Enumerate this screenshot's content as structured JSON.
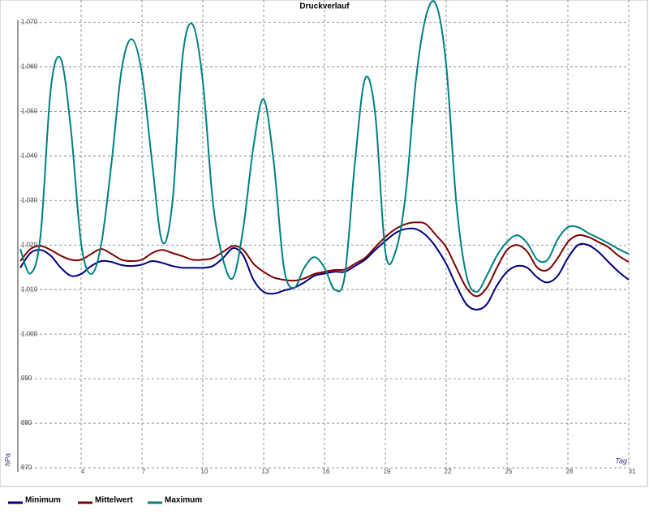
{
  "chart_data": {
    "type": "line",
    "title": "Druckverlauf",
    "y_label": "hPa",
    "x_label": "Tag",
    "x": [
      1,
      1.5,
      2,
      2.5,
      3,
      3.5,
      4,
      4.5,
      5,
      5.5,
      6,
      6.5,
      7,
      7.5,
      8,
      8.5,
      9,
      9.5,
      10,
      10.5,
      11,
      11.5,
      12,
      12.5,
      13,
      13.5,
      14,
      14.5,
      15,
      15.5,
      16,
      16.5,
      17,
      17.5,
      18,
      18.5,
      19,
      19.5,
      20,
      20.5,
      21,
      21.5,
      22,
      22.5,
      23,
      23.5,
      24,
      24.5,
      25,
      25.5,
      26,
      26.5,
      27,
      27.5,
      28,
      28.5,
      29,
      29.5,
      30,
      30.5,
      31
    ],
    "series": [
      {
        "name": "Minimum",
        "color": "#000080",
        "values": [
          1014.9,
          1018.2,
          1018.9,
          1017.6,
          1014.9,
          1013.1,
          1013.5,
          1015.3,
          1016.4,
          1016.2,
          1015.5,
          1015.3,
          1015.6,
          1016.4,
          1016,
          1015.3,
          1014.9,
          1014.9,
          1014.9,
          1015.3,
          1017.1,
          1019.3,
          1017.6,
          1012.2,
          1009.5,
          1009.1,
          1009.8,
          1010.4,
          1011.6,
          1013.1,
          1013.6,
          1014,
          1014,
          1015.3,
          1016.7,
          1018.9,
          1020.9,
          1022.7,
          1023.6,
          1023.6,
          1022.2,
          1019.5,
          1015.8,
          1010.9,
          1006.7,
          1005.5,
          1006.7,
          1010.9,
          1014,
          1015.3,
          1014.9,
          1012.7,
          1011.6,
          1013.1,
          1017.1,
          1020,
          1020,
          1018.5,
          1016.2,
          1014,
          1012.2
        ]
      },
      {
        "name": "Mittelwert",
        "color": "#800000",
        "values": [
          1016.4,
          1019.1,
          1019.8,
          1018.9,
          1017.6,
          1016.7,
          1016.7,
          1018,
          1019.1,
          1018,
          1016.7,
          1016.4,
          1016.7,
          1018.2,
          1018.9,
          1018.2,
          1017.5,
          1016.7,
          1016.7,
          1017.1,
          1018.5,
          1019.8,
          1018.9,
          1015.8,
          1014,
          1012.7,
          1012.2,
          1012,
          1012.5,
          1013.5,
          1014,
          1014.4,
          1014.5,
          1015.8,
          1017.1,
          1019.5,
          1021.8,
          1023.6,
          1024.7,
          1025.1,
          1024.7,
          1022.2,
          1019.5,
          1014.9,
          1010.4,
          1008.5,
          1010.4,
          1014.9,
          1018.9,
          1020,
          1018.5,
          1014.9,
          1014.4,
          1017.1,
          1020.7,
          1022.2,
          1021.8,
          1020.7,
          1019.5,
          1017.6,
          1016.2
        ]
      },
      {
        "name": "Maximum",
        "color": "#008080",
        "values": [
          1019.1,
          1013.6,
          1022.2,
          1054.9,
          1061.8,
          1045.8,
          1020.4,
          1013.5,
          1020.4,
          1038.5,
          1059.5,
          1066.2,
          1058.5,
          1038.5,
          1020.7,
          1029.5,
          1062.2,
          1069.5,
          1056.7,
          1029.5,
          1016.7,
          1012.7,
          1024,
          1042.2,
          1052.7,
          1038.5,
          1014.9,
          1010.4,
          1014.9,
          1017.3,
          1014.9,
          1010,
          1013.1,
          1038.5,
          1057.3,
          1049.5,
          1018.5,
          1018.5,
          1031.3,
          1056.7,
          1071.3,
          1074,
          1060.4,
          1029.5,
          1013.1,
          1009.5,
          1013.1,
          1017.6,
          1020.7,
          1022.2,
          1020.4,
          1016.7,
          1016.7,
          1021.3,
          1024,
          1024,
          1022.7,
          1021.6,
          1020.4,
          1019.1,
          1018
        ]
      }
    ],
    "xlim": [
      1,
      31
    ],
    "xticks": [
      4,
      7,
      10,
      13,
      16,
      19,
      22,
      25,
      28,
      31
    ],
    "ylim": [
      970,
      1075
    ],
    "yticks": [
      970,
      980,
      990,
      {
        "value": 1000,
        "label": "1.000"
      },
      {
        "value": 1010,
        "label": "1.010"
      },
      {
        "value": 1020,
        "label": "1.020"
      },
      {
        "value": 1030,
        "label": "1.030"
      },
      {
        "value": 1040,
        "label": "1.040"
      },
      {
        "value": 1050,
        "label": "1.050"
      },
      {
        "value": 1060,
        "label": "1.060"
      },
      {
        "value": 1070,
        "label": "1.070"
      }
    ],
    "grid": true,
    "legend": "bottom"
  }
}
